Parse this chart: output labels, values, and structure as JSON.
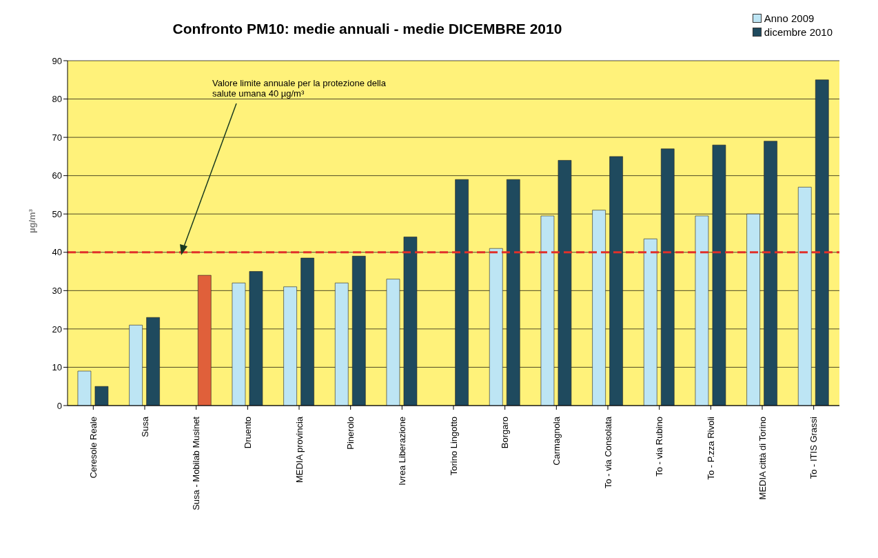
{
  "chart_data": {
    "type": "bar",
    "title": "Confronto PM10: medie annuali - medie DICEMBRE 2010",
    "ylabel": "µg/m³",
    "categories": [
      "Ceresole Reale",
      "Susa",
      "Susa - Mobilab Musinet",
      "Druento",
      "MEDIA provincia",
      "Pinerolo",
      "Ivrea Liberazione",
      "Torino Lingotto",
      "Borgaro",
      "Carmagnola",
      "To - via Consolata",
      "To - via Rubino",
      "To - P.zza Rivoli",
      "MEDIA città di Torino",
      "To - ITIS Grassi"
    ],
    "series": [
      {
        "name": "Anno 2009",
        "color": "#bde5f4",
        "values": [
          9,
          21,
          null,
          32,
          31,
          32,
          33,
          null,
          41,
          49.5,
          51,
          43.5,
          49.5,
          50,
          57
        ]
      },
      {
        "name": "dicembre 2010",
        "color": "#1f4a5e",
        "colors": [
          "#1f4a5e",
          "#1f4a5e",
          "#e0603a",
          "#1f4a5e",
          "#1f4a5e",
          "#1f4a5e",
          "#1f4a5e",
          "#1f4a5e",
          "#1f4a5e",
          "#1f4a5e",
          "#1f4a5e",
          "#1f4a5e",
          "#1f4a5e",
          "#1f4a5e",
          "#1f4a5e"
        ],
        "values": [
          5,
          23,
          34,
          35,
          38.5,
          39,
          44,
          59,
          59,
          64,
          65,
          67,
          68,
          69,
          85
        ]
      }
    ],
    "ylim": [
      0,
      90
    ],
    "yticks": [
      0,
      10,
      20,
      30,
      40,
      50,
      60,
      70,
      80,
      90
    ],
    "grid": "y",
    "legend": "top right",
    "ref_lines": [
      {
        "axis": "y",
        "value": 40,
        "color": "#e0302a",
        "line_style": "dashed"
      }
    ],
    "annotations": [
      "Valore limite annuale per la protezione della salute umana 40 µg/m³"
    ]
  }
}
